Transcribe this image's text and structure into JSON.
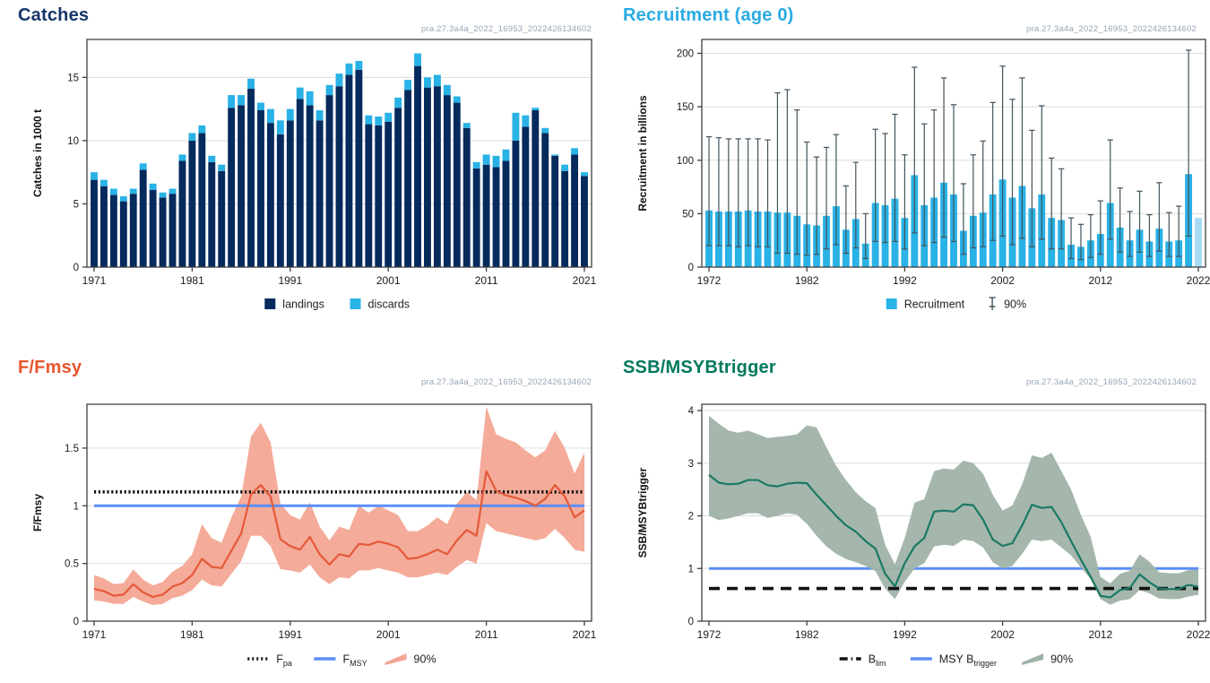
{
  "watermark": "pra.27.3a4a_2022_16953_2022426134602",
  "palette": {
    "navy": "#052a5c",
    "light_blue": "#29b2e6",
    "pale_blue": "#a5dcf3",
    "whisker": "#42535c",
    "orange_line": "#e4593a",
    "salmon_band": "#f3a694",
    "teal_line": "#1a7966",
    "teal_band": "#a0b3a8",
    "ref_blue": "#5a8ef7",
    "black": "#111111",
    "grid": "#dcdcdc",
    "axis": "#3f3f3f",
    "tick_text": "#1b1b1b"
  },
  "chart_data": [
    {
      "id": "catches",
      "type": "bar",
      "stacked": true,
      "row": "top",
      "col": "left",
      "title": "Catches",
      "title_color": "#16356a",
      "ylabel": "Catches in 1000 t",
      "ylim": [
        0,
        18
      ],
      "yticks": [
        0,
        5,
        10,
        15
      ],
      "xticks": [
        1971,
        1981,
        1991,
        2001,
        2011,
        2021
      ],
      "years": [
        1971,
        1972,
        1973,
        1974,
        1975,
        1976,
        1977,
        1978,
        1979,
        1980,
        1981,
        1982,
        1983,
        1984,
        1985,
        1986,
        1987,
        1988,
        1989,
        1990,
        1991,
        1992,
        1993,
        1994,
        1995,
        1996,
        1997,
        1998,
        1999,
        2000,
        2001,
        2002,
        2003,
        2004,
        2005,
        2006,
        2007,
        2008,
        2009,
        2010,
        2011,
        2012,
        2013,
        2014,
        2015,
        2016,
        2017,
        2018,
        2019,
        2020,
        2021
      ],
      "series": [
        {
          "name": "landings",
          "color_key": "navy",
          "values": [
            6.9,
            6.4,
            5.7,
            5.2,
            5.8,
            7.7,
            6.1,
            5.5,
            5.8,
            8.4,
            10.0,
            10.6,
            8.3,
            7.6,
            12.6,
            12.8,
            14.1,
            12.4,
            11.4,
            10.5,
            11.6,
            13.3,
            12.8,
            11.6,
            13.6,
            14.3,
            15.2,
            15.6,
            11.3,
            11.2,
            11.5,
            12.6,
            14.0,
            15.9,
            14.2,
            14.3,
            13.6,
            13.0,
            11.0,
            7.8,
            8.1,
            7.9,
            8.4,
            10.0,
            11.1,
            12.4,
            10.6,
            8.8,
            7.6,
            8.9,
            7.2
          ]
        },
        {
          "name": "discards",
          "color_key": "light_blue",
          "values": [
            0.6,
            0.5,
            0.5,
            0.4,
            0.4,
            0.5,
            0.5,
            0.4,
            0.4,
            0.5,
            0.6,
            0.6,
            0.5,
            0.5,
            1.0,
            0.8,
            0.8,
            0.6,
            1.1,
            1.1,
            0.9,
            0.9,
            1.1,
            0.8,
            0.8,
            1.0,
            0.9,
            0.7,
            0.7,
            0.7,
            0.7,
            0.8,
            0.8,
            1.0,
            0.8,
            0.9,
            0.8,
            0.5,
            0.4,
            0.5,
            0.8,
            0.9,
            0.9,
            2.2,
            0.9,
            0.2,
            0.4,
            0.1,
            0.5,
            0.5,
            0.3
          ]
        }
      ],
      "legend": [
        {
          "swatch": "rect",
          "color_key": "navy",
          "label": "landings"
        },
        {
          "swatch": "rect",
          "color_key": "light_blue",
          "label": "discards"
        }
      ]
    },
    {
      "id": "recruitment",
      "type": "bar",
      "stacked": false,
      "row": "top",
      "col": "right",
      "title": "Recruitment (age 0)",
      "title_color": "#29abe2",
      "ylabel": "Recruitment in billions",
      "ylim": [
        0,
        213
      ],
      "yticks": [
        0,
        50,
        100,
        150,
        200
      ],
      "xticks": [
        1972,
        1982,
        1992,
        2002,
        2012,
        2022
      ],
      "assumed_year": 2022,
      "years": [
        1972,
        1973,
        1974,
        1975,
        1976,
        1977,
        1978,
        1979,
        1980,
        1981,
        1982,
        1983,
        1984,
        1985,
        1986,
        1987,
        1988,
        1989,
        1990,
        1991,
        1992,
        1993,
        1994,
        1995,
        1996,
        1997,
        1998,
        1999,
        2000,
        2001,
        2002,
        2003,
        2004,
        2005,
        2006,
        2007,
        2008,
        2009,
        2010,
        2011,
        2012,
        2013,
        2014,
        2015,
        2016,
        2017,
        2018,
        2019,
        2020,
        2021,
        2022
      ],
      "values": [
        53,
        52,
        52,
        52,
        53,
        52,
        52,
        51,
        51,
        48,
        40,
        39,
        48,
        57,
        35,
        45,
        22,
        60,
        58,
        64,
        46,
        86,
        58,
        65,
        79,
        68,
        34,
        48,
        51,
        68,
        82,
        65,
        76,
        55,
        68,
        46,
        44,
        21,
        19,
        25,
        31,
        60,
        37,
        25,
        35,
        24,
        36,
        24,
        25,
        87,
        46
      ],
      "ci_low": [
        20,
        20,
        20,
        19,
        20,
        19,
        19,
        13,
        13,
        12,
        11,
        12,
        17,
        21,
        13,
        18,
        8,
        24,
        23,
        24,
        17,
        32,
        20,
        23,
        28,
        24,
        12,
        18,
        19,
        25,
        29,
        21,
        27,
        19,
        26,
        17,
        17,
        8,
        7,
        9,
        12,
        26,
        14,
        10,
        14,
        10,
        15,
        10,
        10,
        29,
        null
      ],
      "ci_high": [
        122,
        121,
        120,
        120,
        120,
        120,
        119,
        163,
        166,
        147,
        117,
        103,
        112,
        124,
        76,
        98,
        50,
        129,
        125,
        143,
        105,
        187,
        134,
        147,
        177,
        152,
        78,
        105,
        118,
        154,
        188,
        157,
        177,
        128,
        151,
        102,
        92,
        46,
        40,
        49,
        62,
        119,
        74,
        52,
        71,
        49,
        79,
        51,
        57,
        203,
        null
      ],
      "legend": [
        {
          "swatch": "rect",
          "color_key": "light_blue",
          "label": "Recruitment"
        },
        {
          "swatch": "errorbar",
          "color_key": "whisker",
          "label": "90%"
        }
      ]
    },
    {
      "id": "ffmsy",
      "type": "line",
      "row": "bottom",
      "col": "left",
      "title": "F/Fmsy",
      "title_color": "#e8562d",
      "ylabel": "F/Fmsy",
      "line_color_key": "orange_line",
      "band_color_key": "salmon_band",
      "ylim": [
        0,
        1.88
      ],
      "yticks": [
        0,
        0.5,
        1,
        1.5
      ],
      "xticks": [
        1971,
        1981,
        1991,
        2001,
        2011,
        2021
      ],
      "years": [
        1971,
        1972,
        1973,
        1974,
        1975,
        1976,
        1977,
        1978,
        1979,
        1980,
        1981,
        1982,
        1983,
        1984,
        1985,
        1986,
        1987,
        1988,
        1989,
        1990,
        1991,
        1992,
        1993,
        1994,
        1995,
        1996,
        1997,
        1998,
        1999,
        2000,
        2001,
        2002,
        2003,
        2004,
        2005,
        2006,
        2007,
        2008,
        2009,
        2010,
        2011,
        2012,
        2013,
        2014,
        2015,
        2016,
        2017,
        2018,
        2019,
        2020,
        2021
      ],
      "values": [
        0.28,
        0.26,
        0.22,
        0.23,
        0.32,
        0.25,
        0.21,
        0.23,
        0.3,
        0.33,
        0.4,
        0.54,
        0.47,
        0.46,
        0.61,
        0.76,
        1.1,
        1.18,
        1.08,
        0.71,
        0.65,
        0.62,
        0.73,
        0.58,
        0.49,
        0.58,
        0.56,
        0.67,
        0.66,
        0.69,
        0.67,
        0.64,
        0.54,
        0.55,
        0.58,
        0.62,
        0.58,
        0.7,
        0.79,
        0.74,
        1.3,
        1.13,
        1.09,
        1.07,
        1.04,
        1.0,
        1.06,
        1.18,
        1.08,
        0.9,
        0.96
      ],
      "band_low": [
        0.18,
        0.17,
        0.15,
        0.15,
        0.21,
        0.17,
        0.14,
        0.15,
        0.2,
        0.22,
        0.27,
        0.36,
        0.31,
        0.3,
        0.41,
        0.52,
        0.74,
        0.74,
        0.65,
        0.45,
        0.44,
        0.42,
        0.49,
        0.38,
        0.32,
        0.38,
        0.37,
        0.44,
        0.44,
        0.46,
        0.44,
        0.42,
        0.38,
        0.38,
        0.4,
        0.42,
        0.4,
        0.47,
        0.53,
        0.5,
        0.85,
        0.78,
        0.76,
        0.74,
        0.72,
        0.7,
        0.72,
        0.8,
        0.72,
        0.62,
        0.6
      ],
      "band_high": [
        0.4,
        0.37,
        0.32,
        0.33,
        0.45,
        0.36,
        0.31,
        0.34,
        0.43,
        0.48,
        0.58,
        0.84,
        0.72,
        0.68,
        0.9,
        1.08,
        1.6,
        1.72,
        1.55,
        1.02,
        0.92,
        0.88,
        1.03,
        0.82,
        0.7,
        0.82,
        0.79,
        1.0,
        0.94,
        1.0,
        0.96,
        0.92,
        0.78,
        0.78,
        0.83,
        0.9,
        0.84,
        1.02,
        1.12,
        1.05,
        1.86,
        1.62,
        1.58,
        1.55,
        1.48,
        1.42,
        1.48,
        1.65,
        1.5,
        1.28,
        1.46
      ],
      "ref_lines": [
        {
          "name": "Fpa",
          "value": 1.12,
          "style": "dotted",
          "color_key": "black",
          "layer": "over"
        },
        {
          "name": "FMSY",
          "value": 1.0,
          "style": "solid",
          "color_key": "ref_blue",
          "layer": "over"
        }
      ],
      "legend": [
        {
          "swatch": "line-dotted",
          "color_key": "black",
          "label": "F",
          "sub": "pa"
        },
        {
          "swatch": "line",
          "color_key": "ref_blue",
          "label": "F",
          "sub": "MSY"
        },
        {
          "swatch": "band",
          "color_key": "salmon_band",
          "label": "90%"
        }
      ]
    },
    {
      "id": "ssb",
      "type": "line",
      "row": "bottom",
      "col": "right",
      "title": "SSB/MSYBtrigger",
      "title_color": "#00795e",
      "ylabel": "SSB/MSYBtrigger",
      "line_color_key": "teal_line",
      "band_color_key": "teal_band",
      "ylim": [
        0,
        4.12
      ],
      "yticks": [
        0,
        1,
        2,
        3,
        4
      ],
      "xticks": [
        1972,
        1982,
        1992,
        2002,
        2012,
        2022
      ],
      "years": [
        1972,
        1973,
        1974,
        1975,
        1976,
        1977,
        1978,
        1979,
        1980,
        1981,
        1982,
        1983,
        1984,
        1985,
        1986,
        1987,
        1988,
        1989,
        1990,
        1991,
        1992,
        1993,
        1994,
        1995,
        1996,
        1997,
        1998,
        1999,
        2000,
        2001,
        2002,
        2003,
        2004,
        2005,
        2006,
        2007,
        2008,
        2009,
        2010,
        2011,
        2012,
        2013,
        2014,
        2015,
        2016,
        2017,
        2018,
        2019,
        2020,
        2021,
        2022
      ],
      "values": [
        2.78,
        2.63,
        2.6,
        2.61,
        2.68,
        2.68,
        2.58,
        2.56,
        2.61,
        2.63,
        2.62,
        2.4,
        2.2,
        2.0,
        1.82,
        1.7,
        1.52,
        1.38,
        0.9,
        0.66,
        1.1,
        1.42,
        1.58,
        2.08,
        2.1,
        2.08,
        2.22,
        2.2,
        1.93,
        1.55,
        1.43,
        1.48,
        1.82,
        2.21,
        2.15,
        2.17,
        1.88,
        1.52,
        1.17,
        0.84,
        0.48,
        0.45,
        0.59,
        0.63,
        0.89,
        0.74,
        0.62,
        0.61,
        0.61,
        0.69,
        0.65
      ],
      "band_low": [
        2.0,
        1.92,
        1.95,
        2.0,
        2.05,
        2.05,
        1.96,
        2.0,
        2.05,
        2.02,
        1.85,
        1.62,
        1.42,
        1.28,
        1.18,
        1.12,
        1.05,
        0.95,
        0.62,
        0.42,
        0.75,
        1.0,
        1.1,
        1.42,
        1.45,
        1.43,
        1.55,
        1.52,
        1.4,
        1.12,
        1.0,
        1.05,
        1.28,
        1.55,
        1.52,
        1.55,
        1.4,
        1.25,
        1.02,
        0.8,
        0.42,
        0.31,
        0.39,
        0.42,
        0.59,
        0.53,
        0.43,
        0.42,
        0.42,
        0.47,
        0.5
      ],
      "band_high": [
        3.9,
        3.75,
        3.62,
        3.58,
        3.62,
        3.55,
        3.48,
        3.5,
        3.52,
        3.55,
        3.72,
        3.68,
        3.3,
        2.95,
        2.68,
        2.45,
        2.28,
        2.15,
        1.45,
        1.08,
        1.58,
        2.25,
        2.32,
        2.85,
        2.9,
        2.88,
        3.05,
        3.0,
        2.8,
        2.4,
        2.1,
        2.2,
        2.6,
        3.15,
        3.1,
        3.2,
        2.85,
        2.5,
        2.02,
        1.6,
        0.84,
        0.72,
        0.9,
        0.96,
        1.27,
        1.13,
        0.93,
        0.91,
        0.91,
        0.97,
        0.98
      ],
      "ref_lines": [
        {
          "name": "MSY Btrigger",
          "value": 1.0,
          "style": "solid",
          "color_key": "ref_blue",
          "layer": "under"
        },
        {
          "name": "Blim",
          "value": 0.62,
          "style": "dashed",
          "color_key": "black",
          "layer": "over"
        }
      ],
      "legend": [
        {
          "swatch": "line-dashed",
          "color_key": "black",
          "label": "B",
          "sub": "lim"
        },
        {
          "swatch": "line",
          "color_key": "ref_blue",
          "label": "MSY B",
          "sub": "trigger"
        },
        {
          "swatch": "band",
          "color_key": "teal_band",
          "label": "90%"
        }
      ]
    }
  ]
}
